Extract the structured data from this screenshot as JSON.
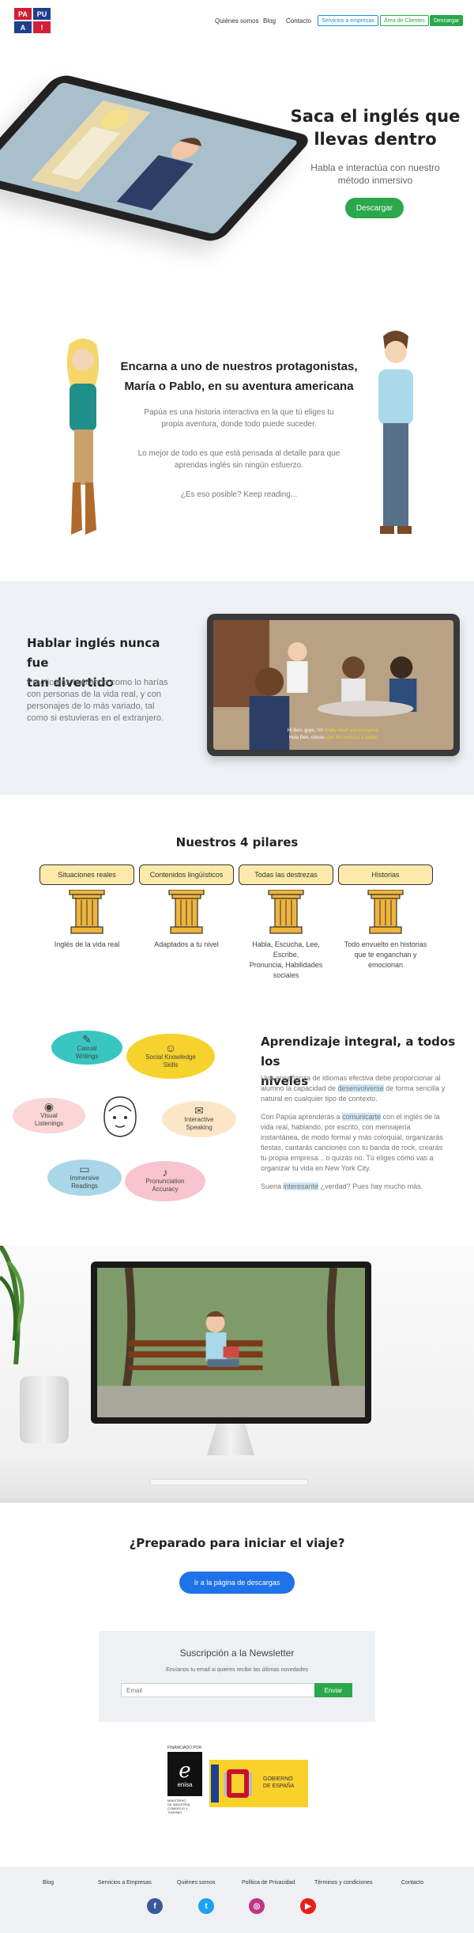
{
  "nav": {
    "logo_letters": [
      "PA",
      "PU",
      "A",
      "!"
    ],
    "links": [
      "Quiénes somos",
      "Blog",
      "Contacto"
    ],
    "btn_empresas": "Servicios a empresas",
    "btn_clientes": "Área de Clientes",
    "btn_descargar": "Descargar"
  },
  "hero": {
    "title_line1": "Saca el inglés que",
    "title_line2": "llevas dentro",
    "subtitle_line1": "Habla e interactúa con nuestro",
    "subtitle_line2": "método inmersivo",
    "button": "Descargar"
  },
  "story": {
    "title_line1": "Encarna a uno de nuestros protagonistas,",
    "title_line2": "María o Pablo, en su aventura americana",
    "p1_line1": "Papúa es una historia interactiva en la que tú eliges tu",
    "p1_line2": "propia aventura, donde todo puede suceder.",
    "p2_line1": "Lo mejor de todo es que está pensada al detalle para que",
    "p2_line2": "aprendas inglés sin ningún esfuerzo.",
    "p3": "¿Es eso posible? Keep reading..."
  },
  "fun": {
    "title_line1": "Hablar inglés nunca fue",
    "title_line2": "tan divertido",
    "p_line1": "Practicarás hablando como lo harías",
    "p_line2": "con personas de la vida real, y con",
    "p_line3": "personajes de lo más variado, tal",
    "p_line4": "como si estuvieras en el extranjero.",
    "sub_line1_a": "Hi Ben, guys, i'm",
    "sub_line1_b": "finally meet you everyone.",
    "sub_line2_a": "Hola Ben, chicos",
    "sub_line2_b": "¡por fin conozco a todos!"
  },
  "pillars": {
    "title": "Nuestros 4 pilares",
    "items": [
      {
        "label": "Situaciones reales",
        "cap1": "Inglés de la vida real",
        "cap2": "",
        "cap3": ""
      },
      {
        "label": "Contenidos lingüísticos",
        "cap1": "Adaptados a tu nivel",
        "cap2": "",
        "cap3": ""
      },
      {
        "label": "Todas las destrezas",
        "cap1": "Habla, Escucha, Lee, Escribe,",
        "cap2": "Pronuncia, Habilidades",
        "cap3": "sociales"
      },
      {
        "label": "Historias",
        "cap1": "Todo envuelto en historias",
        "cap2": "que te enganchan y",
        "cap3": "emocionan"
      }
    ],
    "colors": {
      "card": "#fde9a9",
      "column": "#f0b43c"
    }
  },
  "integral": {
    "bubbles": [
      {
        "l1": "Casual",
        "l2": "Writings",
        "color": "#39c6c1"
      },
      {
        "l1": "Social Knowledge",
        "l2": "Skills",
        "color": "#f6d22d"
      },
      {
        "l1": "Visual",
        "l2": "Listenings",
        "color": "#fad6d6"
      },
      {
        "l1": "Interactive",
        "l2": "Speaking",
        "color": "#fde6c8"
      },
      {
        "l1": "Immersive",
        "l2": "Readings",
        "color": "#a9d7e8"
      },
      {
        "l1": "Pronunciation",
        "l2": "Accuracy",
        "color": "#f8c4cf"
      }
    ],
    "title_line1": "Aprendizaje integral, a todos los",
    "title_line2": "niveles",
    "p1_a": "Una enseñanza de idiomas efectiva debe proporcionar al",
    "p1_b": "alumno la capacidad de",
    "p1_hl": "desenvolverse",
    "p1_c": "de forma sencilla y",
    "p1_d": "natural en cualquier tipo de contexto.",
    "p2_a": "Con Papúa aprenderás a",
    "p2_hl": "comunicarte",
    "p2_b": "con el inglés de la",
    "p2_c": "vida real, hablando, por escrito, con mensajería",
    "p2_d": "instantánea, de modo formal y más coloquial, organizarás",
    "p2_e": "fiestas, cantarás canciones con tu banda de rock, crearás",
    "p2_f": "tu propia empresa... o quizás no. Tú eliges cómo vas a",
    "p2_g": "organizar tu vida en New York City.",
    "p3_a": "Suena",
    "p3_hl": "interesante",
    "p3_b": "¿verdad? Pues hay mucho más."
  },
  "cta": {
    "title": "¿Preparado para iniciar el viaje?",
    "button": "Ir a la página de descargas"
  },
  "newsletter": {
    "title": "Suscripción a la Newsletter",
    "subtitle": "Envíanos tu email si quieres recibir las últimas novedades",
    "placeholder": "Email",
    "button": "Enviar"
  },
  "logos": {
    "enisa_top": "FINANCIADO POR",
    "enisa_name": "enisa",
    "enisa_l1": "MINISTERIO",
    "enisa_l2": "DE INDUSTRIA,",
    "enisa_l3": "COMERCIO Y",
    "enisa_l4": "TURISMO",
    "gov_l1": "GOBIERNO",
    "gov_l2": "DE ESPAÑA"
  },
  "footer": {
    "links": [
      "Blog",
      "Servicios a Empresas",
      "Quiénes somos",
      "Política de Privacidad",
      "Términos y condiciones",
      "Contacto"
    ],
    "social": [
      {
        "glyph": "f",
        "color": "#3b5998"
      },
      {
        "glyph": "t",
        "color": "#1da1f2"
      },
      {
        "glyph": "◎",
        "color": "#c13584"
      },
      {
        "glyph": "▶",
        "color": "#e62117"
      }
    ]
  }
}
